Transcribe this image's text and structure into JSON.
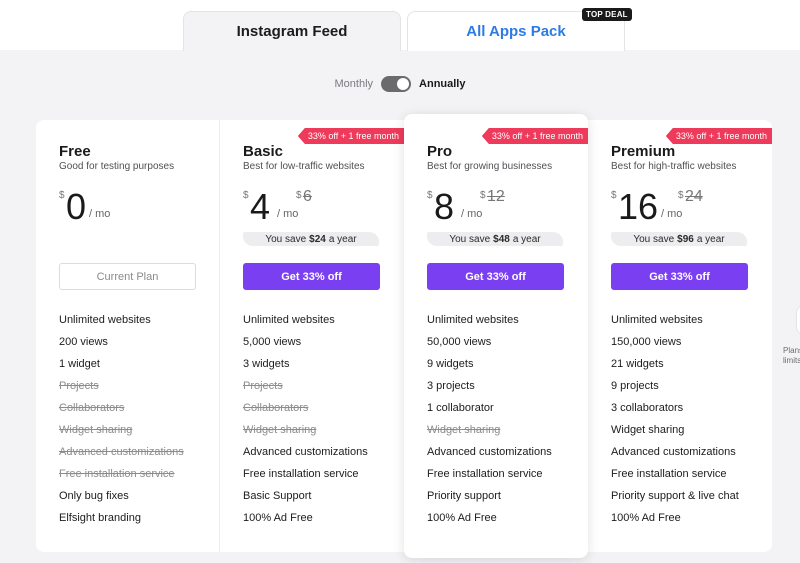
{
  "tabs": [
    {
      "label": "Instagram Feed"
    },
    {
      "label": "All Apps Pack",
      "badge": "TOP DEAL"
    }
  ],
  "billing": {
    "monthly": "Monthly",
    "annually": "Annually",
    "selected": "Annually"
  },
  "plans": [
    {
      "name": "Free",
      "desc": "Good for testing purposes",
      "currency": "$",
      "price": "0",
      "per": "/ mo",
      "button": "Current Plan",
      "features": [
        {
          "text": "Unlimited websites"
        },
        {
          "text": "200 views"
        },
        {
          "text": "1 widget"
        },
        {
          "text": "Projects",
          "off": true
        },
        {
          "text": "Collaborators",
          "off": true
        },
        {
          "text": "Widget sharing",
          "off": true
        },
        {
          "text": "Advanced customizations",
          "off": true
        },
        {
          "text": "Free installation service",
          "off": true
        },
        {
          "text": "Only bug fixes"
        },
        {
          "text": "Elfsight branding"
        }
      ]
    },
    {
      "name": "Basic",
      "desc": "Best for low-traffic websites",
      "ribbon": "33% off + 1 free month",
      "currency": "$",
      "price": "4",
      "per": "/ mo",
      "old_currency": "$",
      "old_price": "6",
      "save_prefix": "You save",
      "save_amount": "$24",
      "save_suffix": "a year",
      "button": "Get 33% off",
      "features": [
        {
          "text": "Unlimited websites"
        },
        {
          "text": "5,000 views"
        },
        {
          "text": "3 widgets"
        },
        {
          "text": "Projects",
          "off": true
        },
        {
          "text": "Collaborators",
          "off": true
        },
        {
          "text": "Widget sharing",
          "off": true
        },
        {
          "text": "Advanced customizations"
        },
        {
          "text": "Free installation service"
        },
        {
          "text": "Basic Support"
        },
        {
          "text": "100% Ad Free"
        }
      ]
    },
    {
      "name": "Pro",
      "desc": "Best for growing businesses",
      "ribbon": "33% off + 1 free month",
      "currency": "$",
      "price": "8",
      "per": "/ mo",
      "old_currency": "$",
      "old_price": "12",
      "save_prefix": "You save",
      "save_amount": "$48",
      "save_suffix": "a year",
      "button": "Get 33% off",
      "features": [
        {
          "text": "Unlimited websites"
        },
        {
          "text": "50,000 views"
        },
        {
          "text": "9 widgets"
        },
        {
          "text": "3 projects"
        },
        {
          "text": "1 collaborator"
        },
        {
          "text": "Widget sharing",
          "off": true
        },
        {
          "text": "Advanced customizations"
        },
        {
          "text": "Free installation service"
        },
        {
          "text": "Priority support"
        },
        {
          "text": "100% Ad Free"
        }
      ]
    },
    {
      "name": "Premium",
      "desc": "Best for high-traffic websites",
      "ribbon": "33% off + 1 free month",
      "currency": "$",
      "price": "16",
      "per": "/ mo",
      "old_currency": "$",
      "old_price": "24",
      "save_prefix": "You save",
      "save_amount": "$96",
      "save_suffix": "a year",
      "button": "Get 33% off",
      "features": [
        {
          "text": "Unlimited websites"
        },
        {
          "text": "150,000 views"
        },
        {
          "text": "21 widgets"
        },
        {
          "text": "9 projects"
        },
        {
          "text": "3 collaborators"
        },
        {
          "text": "Widget sharing"
        },
        {
          "text": "Advanced customizations"
        },
        {
          "text": "Free installation service"
        },
        {
          "text": "Priority support & live chat"
        },
        {
          "text": "100% Ad Free"
        }
      ]
    }
  ],
  "edge": {
    "line1": "Plans",
    "line2": "limits"
  },
  "colors": {
    "accent": "#7b3ff2",
    "ribbon": "#ee3a5b",
    "link": "#2d7be5"
  }
}
